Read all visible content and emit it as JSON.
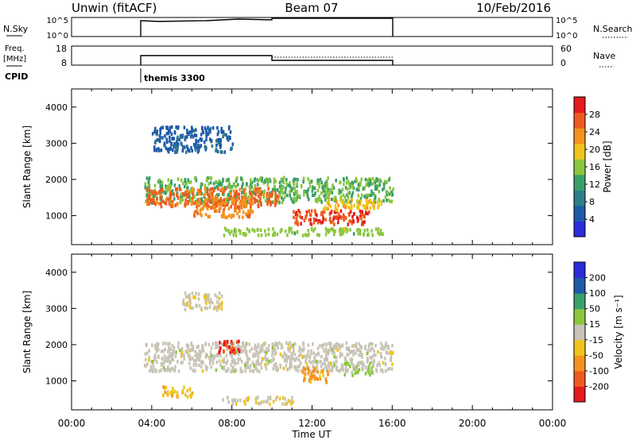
{
  "header": {
    "station": "Unwin (fitACF)",
    "beam": "Beam 07",
    "date": "10/Feb/2016"
  },
  "status_panels": {
    "nsky_label": "N.Sky",
    "nsky_ticks": [
      "10^5",
      "10^0"
    ],
    "nsearch_label": "N.Search",
    "freq_label": "Freq.",
    "freq_unit": "[MHz]",
    "freq_ticks": [
      "18",
      "8"
    ],
    "nave_label": "Nave",
    "nave_ticks": [
      "60",
      "0"
    ],
    "cpid_label": "CPID",
    "cpid_value": "themis 3300"
  },
  "x_axis": {
    "label": "Time UT",
    "ticks": [
      "00:00",
      "04:00",
      "08:00",
      "12:00",
      "16:00",
      "20:00",
      "00:00"
    ],
    "range_hours": [
      0,
      24
    ]
  },
  "colors": {
    "power_scale": [
      "#2b2bd9",
      "#1f5aa8",
      "#2e7d8a",
      "#3aa06a",
      "#8cc63f",
      "#f0c419",
      "#f5921e",
      "#ef5a1e",
      "#e41a1c"
    ],
    "velocity_scale": [
      "#e41a1c",
      "#ef5a1e",
      "#f5921e",
      "#f0c419",
      "#c8c4b6",
      "#8cc63f",
      "#3aa06a",
      "#1f5aa8",
      "#2b2bd9"
    ],
    "ground_scatter": "#c8c4b6"
  },
  "chart_data": [
    {
      "type": "heatmap",
      "name": "power",
      "ylabel": "Slant Range [km]",
      "yticks": [
        1000,
        2000,
        3000,
        4000
      ],
      "ylim": [
        200,
        4500
      ],
      "xlim_hours": [
        0,
        24
      ],
      "colorbar": {
        "label": "Power [dB]",
        "ticks": [
          "28",
          "24",
          "20",
          "16",
          "12",
          "8",
          "4"
        ],
        "range": [
          0,
          32
        ]
      },
      "data_coverage_hours": [
        3.5,
        16.0
      ],
      "regions": [
        {
          "t": [
            3.6,
            16.0
          ],
          "r": [
            1400,
            2100
          ],
          "value": 14
        },
        {
          "t": [
            3.7,
            10.3
          ],
          "r": [
            1300,
            1800
          ],
          "value": 26
        },
        {
          "t": [
            6.0,
            9.0
          ],
          "r": [
            1000,
            1500
          ],
          "value": 24
        },
        {
          "t": [
            11.0,
            14.8
          ],
          "r": [
            800,
            1200
          ],
          "value": 28
        },
        {
          "t": [
            12.5,
            15.5
          ],
          "r": [
            1200,
            1500
          ],
          "value": 20
        },
        {
          "t": [
            4.0,
            8.0
          ],
          "r": [
            2800,
            3500
          ],
          "value": 6
        },
        {
          "t": [
            7.5,
            15.5
          ],
          "r": [
            500,
            700
          ],
          "value": 16
        }
      ]
    },
    {
      "type": "heatmap",
      "name": "velocity",
      "ylabel": "Slant Range [km]",
      "yticks": [
        1000,
        2000,
        3000,
        4000
      ],
      "ylim": [
        200,
        4500
      ],
      "xlim_hours": [
        0,
        24
      ],
      "colorbar": {
        "label": "Velocity [m s⁻¹]",
        "ticks": [
          "200",
          "100",
          "50",
          "15",
          "-15",
          "-50",
          "-100",
          "-200"
        ],
        "range": [
          -250,
          250
        ]
      },
      "data_coverage_hours": [
        3.5,
        16.0
      ],
      "regions": [
        {
          "t": [
            3.6,
            16.0
          ],
          "r": [
            1300,
            2100
          ],
          "value": 0
        },
        {
          "t": [
            7.3,
            8.5
          ],
          "r": [
            1800,
            2150
          ],
          "value": -200
        },
        {
          "t": [
            11.5,
            12.8
          ],
          "r": [
            1000,
            1400
          ],
          "value": -100
        },
        {
          "t": [
            13.5,
            15.0
          ],
          "r": [
            1200,
            1550
          ],
          "value": 40
        },
        {
          "t": [
            7.5,
            11.0
          ],
          "r": [
            400,
            600
          ],
          "value": -30
        },
        {
          "t": [
            4.5,
            6.0
          ],
          "r": [
            600,
            900
          ],
          "value": -60
        },
        {
          "t": [
            5.5,
            7.5
          ],
          "r": [
            3000,
            3500
          ],
          "value": -15
        }
      ]
    }
  ]
}
